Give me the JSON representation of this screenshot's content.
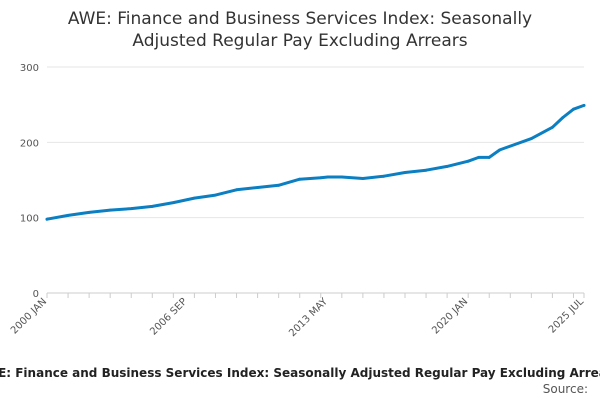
{
  "chart_data": {
    "type": "line",
    "title_lines": [
      "AWE: Finance and Business Services Index: Seasonally",
      "Adjusted Regular Pay Excluding Arrears"
    ],
    "x_tick_labels": [
      "2000 JAN",
      "2006 SEP",
      "2013 MAY",
      "2020 JAN",
      "2025 JUL"
    ],
    "y_tick_labels": [
      "0",
      "100",
      "200",
      "300"
    ],
    "ylim": [
      0,
      300
    ],
    "grid": "horizontal",
    "legend": {
      "label": "AWE: Finance and Business Services Index: Seasonally Adjusted Regular Pay Excluding Arrears",
      "placement": "bottom"
    },
    "source_label": "Source:",
    "line_color": "#0b7fc2",
    "series": [
      {
        "name": "AWE: Finance and Business Services Index: Seasonally Adjusted Regular Pay Excluding Arrears",
        "points": [
          [
            "2000 JAN",
            98
          ],
          [
            "2001 JAN",
            103
          ],
          [
            "2002 JAN",
            107
          ],
          [
            "2003 JAN",
            110
          ],
          [
            "2004 JAN",
            112
          ],
          [
            "2005 JAN",
            115
          ],
          [
            "2006 JAN",
            120
          ],
          [
            "2006 SEP",
            124
          ],
          [
            "2007 JAN",
            126
          ],
          [
            "2008 JAN",
            130
          ],
          [
            "2009 JAN",
            137
          ],
          [
            "2010 JAN",
            140
          ],
          [
            "2011 JAN",
            143
          ],
          [
            "2012 JAN",
            151
          ],
          [
            "2013 JAN",
            153
          ],
          [
            "2013 MAY",
            154
          ],
          [
            "2014 JAN",
            154
          ],
          [
            "2015 JAN",
            152
          ],
          [
            "2016 JAN",
            155
          ],
          [
            "2017 JAN",
            160
          ],
          [
            "2018 JAN",
            163
          ],
          [
            "2019 JAN",
            168
          ],
          [
            "2020 JAN",
            175
          ],
          [
            "2020 JUL",
            180
          ],
          [
            "2021 JAN",
            180
          ],
          [
            "2021 JUL",
            190
          ],
          [
            "2022 JAN",
            195
          ],
          [
            "2023 JAN",
            205
          ],
          [
            "2024 JAN",
            220
          ],
          [
            "2024 JUL",
            233
          ],
          [
            "2025 JAN",
            244
          ],
          [
            "2025 JUL",
            249
          ]
        ]
      }
    ]
  }
}
